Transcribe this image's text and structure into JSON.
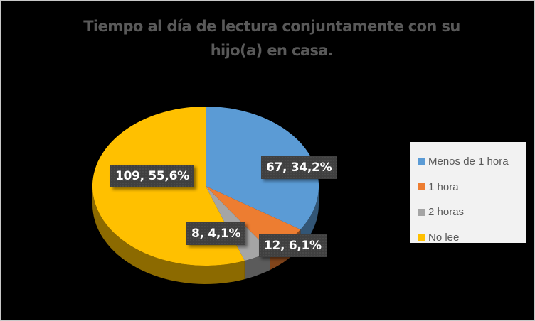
{
  "chart_data": {
    "type": "pie",
    "title": "Tiempo al día de lectura conjuntamente con su hijo(a) en casa.",
    "title_lines": [
      "Tiempo al día de lectura conjuntamente con su",
      "hijo(a) en casa."
    ],
    "categories": [
      "Menos de 1 hora",
      "1 hora",
      "2 horas",
      "No lee"
    ],
    "values": [
      67,
      12,
      8,
      109
    ],
    "percentages": [
      34.2,
      6.1,
      4.1,
      55.6
    ],
    "data_labels": [
      "67, 34,2%",
      "12, 6,1%",
      "8, 4,1%",
      "109, 55,6%"
    ],
    "colors": [
      "#5b9bd5",
      "#ed7d31",
      "#a5a5a5",
      "#ffc000"
    ],
    "legend_position": "right",
    "style": "3d-pie"
  },
  "chart": {
    "title_line1": "Tiempo al día de lectura conjuntamente con su",
    "title_line2": "hijo(a) en casa.",
    "legend": [
      {
        "label": "Menos de 1 hora",
        "color": "#5b9bd5"
      },
      {
        "label": "1 hora",
        "color": "#ed7d31"
      },
      {
        "label": "2 horas",
        "color": "#a5a5a5"
      },
      {
        "label": "No lee",
        "color": "#ffc000"
      }
    ],
    "labels": {
      "menos_1_hora": "67, 34,2%",
      "una_hora": "12, 6,1%",
      "dos_horas": "8, 4,1%",
      "no_lee": "109, 55,6%"
    },
    "background": "#000000",
    "border_color": "#c8c8c8",
    "title_color": "#595959"
  }
}
